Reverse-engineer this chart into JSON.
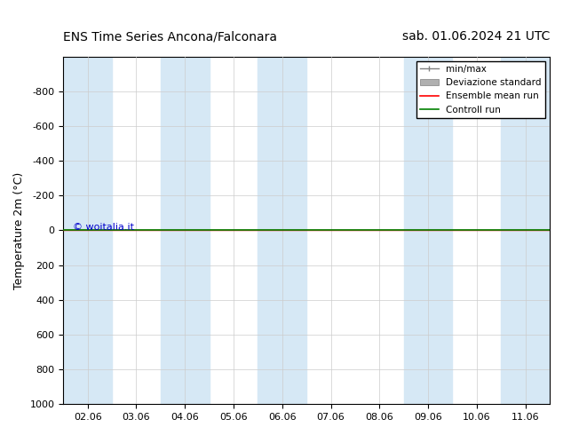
{
  "title_left": "ENS Time Series Ancona/Falconara",
  "title_right": "sab. 01.06.2024 21 UTC",
  "ylabel": "Temperature 2m (°C)",
  "ylim": [
    -1000,
    1000
  ],
  "yticks": [
    -800,
    -600,
    -400,
    -200,
    0,
    200,
    400,
    600,
    800,
    1000
  ],
  "xlim_start": "2024-06-02",
  "xlim_end": "2024-06-12",
  "xtick_labels": [
    "02.06",
    "03.06",
    "04.06",
    "05.06",
    "06.06",
    "07.06",
    "08.06",
    "09.06",
    "10.06",
    "11.06"
  ],
  "xtick_positions": [
    0,
    1,
    2,
    3,
    4,
    5,
    6,
    7,
    8,
    9
  ],
  "shaded_bands": [
    0,
    2,
    4,
    7,
    9
  ],
  "band_color": "#d6e8f5",
  "ensemble_mean_y": 0,
  "control_run_y": 0,
  "ensemble_mean_color": "#ff0000",
  "control_run_color": "#008000",
  "watermark": "© woitalia.it",
  "watermark_color": "#0000cc",
  "legend_labels": [
    "min/max",
    "Deviazione standard",
    "Ensemble mean run",
    "Controll run"
  ],
  "minmax_color": "#808080",
  "std_color": "#b0b0b0",
  "background_color": "#ffffff",
  "title_fontsize": 11,
  "axis_fontsize": 9,
  "tick_fontsize": 8
}
